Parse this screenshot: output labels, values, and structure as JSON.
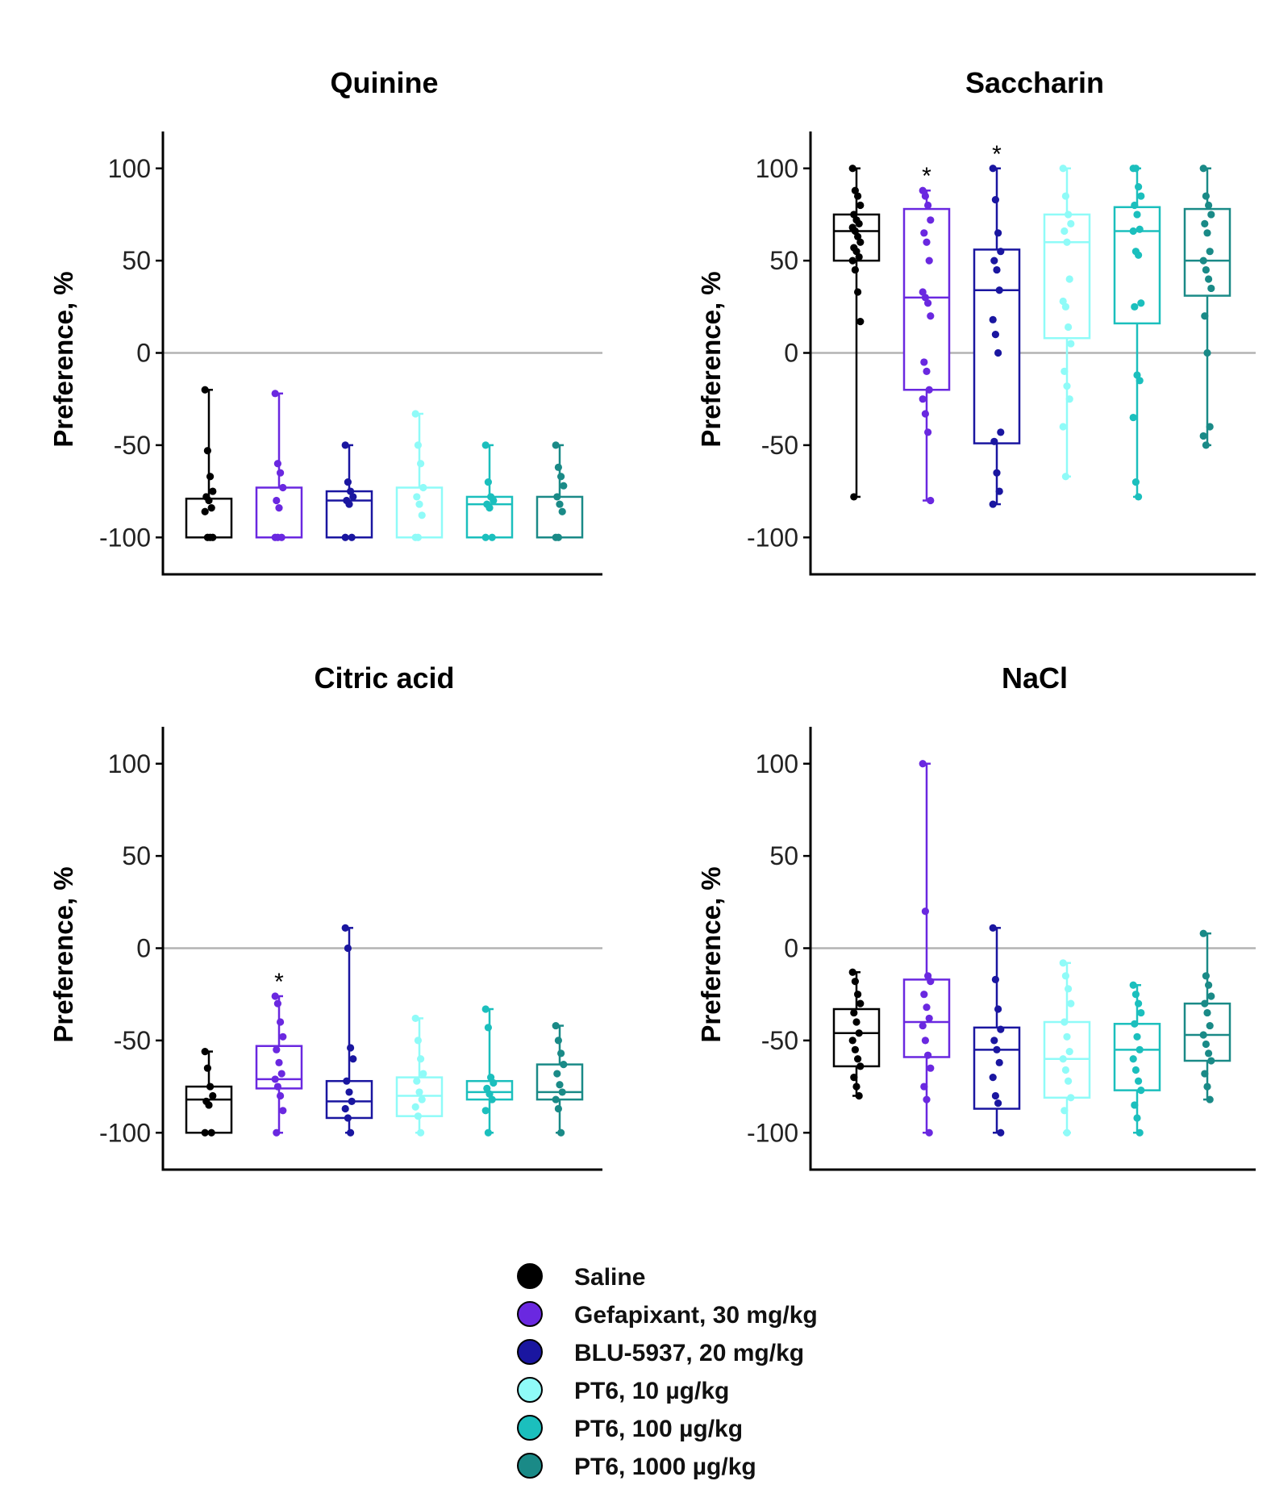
{
  "legend": [
    {
      "label": "Saline",
      "color": "#000000"
    },
    {
      "label": "Gefapixant, 30 mg/kg",
      "color": "#6a28e0"
    },
    {
      "label": "BLU-5937, 20 mg/kg",
      "color": "#1a16a0"
    },
    {
      "label": "PT6, 10 µg/kg",
      "color": "#8ffbf8"
    },
    {
      "label": "PT6, 100 µg/kg",
      "color": "#1bbfbd"
    },
    {
      "label": "PT6, 1000 µg/kg",
      "color": "#1a8a87"
    }
  ],
  "chart_data": [
    {
      "type": "box",
      "title": "Quinine",
      "ylabel": "Preference, %",
      "ylim": [
        -120,
        120
      ],
      "yticks": [
        "100",
        "50",
        "0",
        "-50",
        "-100"
      ],
      "reference_line": 0,
      "groups": [
        {
          "name": "Saline",
          "min": -100,
          "q1": -100,
          "median": -100,
          "q3": -79,
          "max": -20,
          "points": [
            -20,
            -53,
            -67,
            -75,
            -78,
            -80,
            -84,
            -86,
            -100,
            -100,
            -100
          ],
          "significant": false
        },
        {
          "name": "Gefapixant, 30 mg/kg",
          "min": -100,
          "q1": -100,
          "median": -100,
          "q3": -73,
          "max": -22,
          "points": [
            -22,
            -60,
            -65,
            -73,
            -80,
            -84,
            -100,
            -100,
            -100
          ],
          "significant": false
        },
        {
          "name": "BLU-5937, 20 mg/kg",
          "min": -100,
          "q1": -100,
          "median": -80,
          "q3": -75,
          "max": -50,
          "points": [
            -50,
            -70,
            -75,
            -78,
            -80,
            -82,
            -100,
            -100
          ],
          "significant": false
        },
        {
          "name": "PT6, 10 µg/kg",
          "min": -100,
          "q1": -100,
          "median": -100,
          "q3": -73,
          "max": -33,
          "points": [
            -33,
            -50,
            -60,
            -73,
            -78,
            -82,
            -88,
            -100,
            -100
          ],
          "significant": false
        },
        {
          "name": "PT6, 100 µg/kg",
          "min": -100,
          "q1": -100,
          "median": -82,
          "q3": -78,
          "max": -50,
          "points": [
            -50,
            -70,
            -78,
            -80,
            -82,
            -84,
            -100,
            -100
          ],
          "significant": false
        },
        {
          "name": "PT6, 1000 µg/kg",
          "min": -100,
          "q1": -100,
          "median": -100,
          "q3": -78,
          "max": -50,
          "points": [
            -50,
            -62,
            -67,
            -72,
            -78,
            -82,
            -86,
            -100,
            -100
          ],
          "significant": false
        }
      ]
    },
    {
      "type": "box",
      "title": "Saccharin",
      "ylabel": "Preference, %",
      "ylim": [
        -120,
        120
      ],
      "yticks": [
        "100",
        "50",
        "0",
        "-50",
        "-100"
      ],
      "reference_line": 0,
      "groups": [
        {
          "name": "Saline",
          "min": -78,
          "q1": 50,
          "median": 66,
          "q3": 75,
          "max": 100,
          "points": [
            100,
            88,
            85,
            80,
            75,
            72,
            70,
            68,
            66,
            63,
            60,
            57,
            55,
            52,
            50,
            45,
            33,
            17,
            -78
          ],
          "significant": false
        },
        {
          "name": "Gefapixant, 30 mg/kg",
          "min": -80,
          "q1": -20,
          "median": 30,
          "q3": 78,
          "max": 88,
          "points": [
            88,
            85,
            80,
            72,
            65,
            60,
            50,
            33,
            30,
            27,
            20,
            -5,
            -10,
            -20,
            -25,
            -33,
            -43,
            -80
          ],
          "significant": true
        },
        {
          "name": "BLU-5937, 20 mg/kg",
          "min": -82,
          "q1": -49,
          "median": 34,
          "q3": 56,
          "max": 100,
          "points": [
            100,
            83,
            65,
            55,
            50,
            45,
            34,
            18,
            10,
            0,
            -43,
            -48,
            -65,
            -75,
            -82
          ],
          "significant": true
        },
        {
          "name": "PT6, 10 µg/kg",
          "min": -67,
          "q1": 8,
          "median": 60,
          "q3": 75,
          "max": 100,
          "points": [
            100,
            85,
            75,
            70,
            66,
            60,
            40,
            28,
            25,
            14,
            5,
            -10,
            -18,
            -25,
            -40,
            -67
          ],
          "significant": false
        },
        {
          "name": "PT6, 100 µg/kg",
          "min": -78,
          "q1": 16,
          "median": 66,
          "q3": 79,
          "max": 100,
          "points": [
            100,
            100,
            90,
            85,
            80,
            75,
            67,
            66,
            55,
            53,
            27,
            25,
            -12,
            -15,
            -35,
            -70,
            -78
          ],
          "significant": false
        },
        {
          "name": "PT6, 1000 µg/kg",
          "min": -50,
          "q1": 31,
          "median": 50,
          "q3": 78,
          "max": 100,
          "points": [
            100,
            85,
            80,
            75,
            70,
            65,
            55,
            50,
            45,
            40,
            35,
            20,
            0,
            -40,
            -45,
            -50
          ],
          "significant": false
        }
      ]
    },
    {
      "type": "box",
      "title": "Citric acid",
      "ylabel": "Preference, %",
      "ylim": [
        -120,
        120
      ],
      "yticks": [
        "100",
        "50",
        "0",
        "-50",
        "-100"
      ],
      "reference_line": 0,
      "groups": [
        {
          "name": "Saline",
          "min": -100,
          "q1": -100,
          "median": -82,
          "q3": -75,
          "max": -56,
          "points": [
            -56,
            -65,
            -75,
            -80,
            -83,
            -85,
            -100,
            -100
          ],
          "significant": false
        },
        {
          "name": "Gefapixant, 30 mg/kg",
          "min": -100,
          "q1": -76,
          "median": -71,
          "q3": -53,
          "max": -26,
          "points": [
            -26,
            -30,
            -40,
            -48,
            -55,
            -62,
            -68,
            -71,
            -75,
            -80,
            -88,
            -100
          ],
          "significant": true
        },
        {
          "name": "BLU-5937, 20 mg/kg",
          "min": -100,
          "q1": -92,
          "median": -83,
          "q3": -72,
          "max": 11,
          "points": [
            11,
            0,
            -54,
            -60,
            -72,
            -78,
            -83,
            -87,
            -92,
            -100
          ],
          "significant": false
        },
        {
          "name": "PT6, 10 µg/kg",
          "min": -100,
          "q1": -91,
          "median": -80,
          "q3": -70,
          "max": -38,
          "points": [
            -38,
            -50,
            -60,
            -68,
            -72,
            -78,
            -82,
            -86,
            -91,
            -100
          ],
          "significant": false
        },
        {
          "name": "PT6, 100 µg/kg",
          "min": -100,
          "q1": -82,
          "median": -78,
          "q3": -72,
          "max": -33,
          "points": [
            -33,
            -43,
            -70,
            -73,
            -76,
            -79,
            -82,
            -88,
            -100
          ],
          "significant": false
        },
        {
          "name": "PT6, 1000 µg/kg",
          "min": -100,
          "q1": -82,
          "median": -78,
          "q3": -63,
          "max": -42,
          "points": [
            -42,
            -50,
            -57,
            -63,
            -68,
            -74,
            -78,
            -82,
            -87,
            -100
          ],
          "significant": false
        }
      ]
    },
    {
      "type": "box",
      "title": "NaCl",
      "ylabel": "Preference, %",
      "ylim": [
        -120,
        120
      ],
      "yticks": [
        "100",
        "50",
        "0",
        "-50",
        "-100"
      ],
      "reference_line": 0,
      "groups": [
        {
          "name": "Saline",
          "min": -80,
          "q1": -64,
          "median": -46,
          "q3": -33,
          "max": -13,
          "points": [
            -13,
            -18,
            -25,
            -30,
            -35,
            -40,
            -46,
            -50,
            -55,
            -60,
            -64,
            -70,
            -75,
            -80
          ],
          "significant": false
        },
        {
          "name": "Gefapixant, 30 mg/kg",
          "min": -100,
          "q1": -59,
          "median": -40,
          "q3": -17,
          "max": 100,
          "points": [
            100,
            20,
            -15,
            -18,
            -25,
            -32,
            -38,
            -42,
            -50,
            -58,
            -65,
            -75,
            -82,
            -100
          ],
          "significant": false
        },
        {
          "name": "BLU-5937, 20 mg/kg",
          "min": -100,
          "q1": -87,
          "median": -55,
          "q3": -43,
          "max": 11,
          "points": [
            11,
            -17,
            -33,
            -44,
            -50,
            -55,
            -62,
            -70,
            -80,
            -84,
            -100
          ],
          "significant": false
        },
        {
          "name": "PT6, 10 µg/kg",
          "min": -100,
          "q1": -81,
          "median": -60,
          "q3": -40,
          "max": -8,
          "points": [
            -8,
            -15,
            -22,
            -30,
            -40,
            -48,
            -56,
            -60,
            -66,
            -72,
            -81,
            -88,
            -100
          ],
          "significant": false
        },
        {
          "name": "PT6, 100 µg/kg",
          "min": -100,
          "q1": -77,
          "median": -55,
          "q3": -41,
          "max": -20,
          "points": [
            -20,
            -25,
            -30,
            -35,
            -41,
            -48,
            -55,
            -60,
            -66,
            -72,
            -77,
            -85,
            -92,
            -100
          ],
          "significant": false
        },
        {
          "name": "PT6, 1000 µg/kg",
          "min": -82,
          "q1": -61,
          "median": -47,
          "q3": -30,
          "max": 8,
          "points": [
            8,
            -15,
            -20,
            -26,
            -30,
            -35,
            -42,
            -47,
            -52,
            -57,
            -61,
            -68,
            -75,
            -82
          ],
          "significant": false
        }
      ]
    }
  ]
}
